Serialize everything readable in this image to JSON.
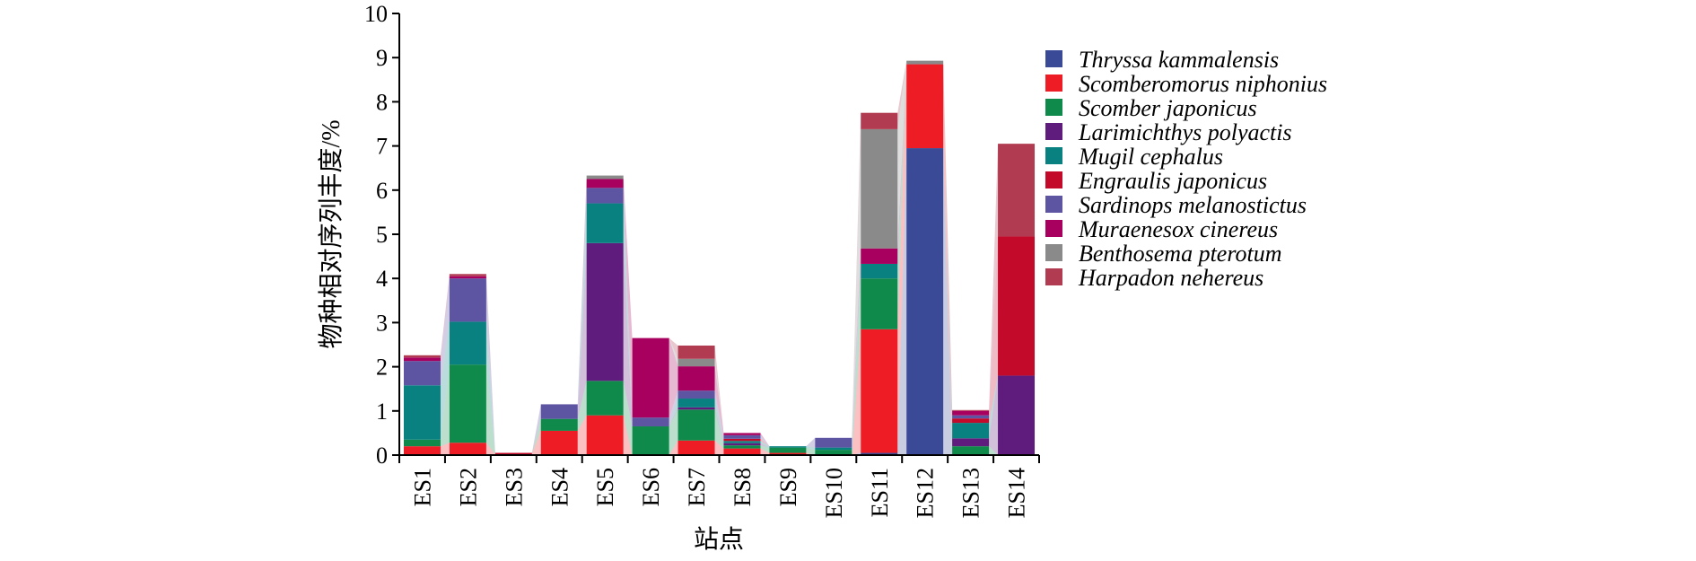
{
  "chart_data": {
    "type": "bar",
    "stacked": true,
    "connectors": true,
    "title": "",
    "xlabel": "站点",
    "ylabel": "物种相对序列丰度/%",
    "ylim": [
      0,
      10
    ],
    "yticks": [
      0,
      1,
      2,
      3,
      4,
      5,
      6,
      7,
      8,
      9,
      10
    ],
    "grid": false,
    "legend_position": "right",
    "categories": [
      "ES1",
      "ES2",
      "ES3",
      "ES4",
      "ES5",
      "ES6",
      "ES7",
      "ES8",
      "ES9",
      "ES10",
      "ES11",
      "ES12",
      "ES13",
      "ES14"
    ],
    "series": [
      {
        "name": "Thryssa kammalensis",
        "color": "#3b4a96",
        "values": [
          0,
          0,
          0,
          0,
          0,
          0,
          0,
          0,
          0,
          0,
          0.05,
          6.95,
          0,
          0
        ]
      },
      {
        "name": "Scomberomorus niphonius",
        "color": "#ee1c24",
        "values": [
          0.2,
          0.28,
          0.02,
          0.55,
          0.9,
          0,
          0.33,
          0.15,
          0.05,
          0,
          2.8,
          1.9,
          0,
          0
        ]
      },
      {
        "name": "Scomber japonicus",
        "color": "#0f8a4b",
        "values": [
          0.15,
          1.77,
          0,
          0.27,
          0.78,
          0.65,
          0.7,
          0.07,
          0.12,
          0.12,
          1.15,
          0,
          0.2,
          0
        ]
      },
      {
        "name": "Larimichthys polyactis",
        "color": "#5f1c7c",
        "values": [
          0,
          0,
          0,
          0,
          3.12,
          0,
          0.05,
          0.05,
          0,
          0,
          0,
          0,
          0.18,
          1.8
        ]
      },
      {
        "name": "Mugil cephalus",
        "color": "#0a8181",
        "values": [
          1.23,
          0.97,
          0,
          0,
          0.9,
          0,
          0.2,
          0.05,
          0.03,
          0.05,
          0.33,
          0,
          0.35,
          0
        ]
      },
      {
        "name": "Engraulis japonicus",
        "color": "#c40a2a",
        "values": [
          0,
          0,
          0.03,
          0,
          0,
          0,
          0,
          0.05,
          0,
          0,
          0,
          0,
          0.1,
          3.15
        ]
      },
      {
        "name": "Sardinops melanostictus",
        "color": "#5d54a2",
        "values": [
          0.55,
          0.98,
          0,
          0.33,
          0.35,
          0.2,
          0.18,
          0.08,
          0,
          0.22,
          0,
          0,
          0.07,
          0
        ]
      },
      {
        "name": "Muraenesox cinereus",
        "color": "#a8005f",
        "values": [
          0.08,
          0.05,
          0,
          0,
          0.2,
          1.8,
          0.55,
          0.05,
          0,
          0,
          0.35,
          0,
          0.1,
          0
        ]
      },
      {
        "name": "Benthosema pterotum",
        "color": "#8a8a8a",
        "values": [
          0,
          0,
          0,
          0,
          0.08,
          0,
          0.17,
          0,
          0,
          0,
          2.7,
          0.08,
          0,
          0
        ]
      },
      {
        "name": "Harpadon nehereus",
        "color": "#b13c52",
        "values": [
          0.05,
          0.05,
          0,
          0,
          0,
          0,
          0.3,
          0,
          0,
          0,
          0.37,
          0,
          0.02,
          2.1
        ]
      }
    ]
  }
}
